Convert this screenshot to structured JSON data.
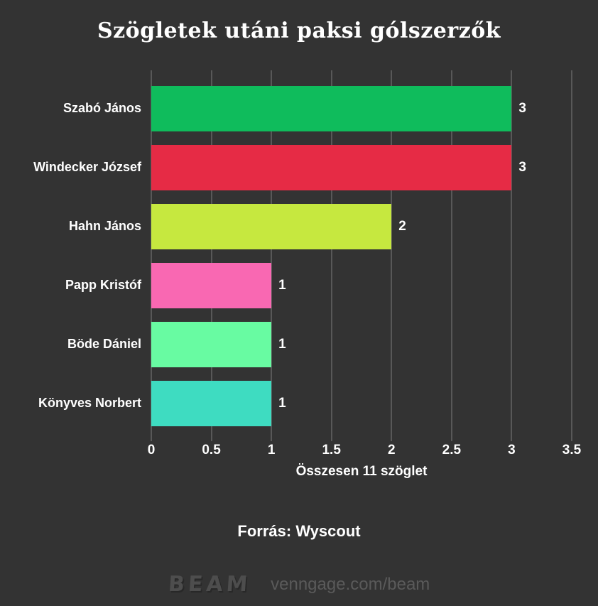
{
  "title": "Szögletek utáni paksi gólszerzők",
  "chart_data": {
    "type": "bar",
    "orientation": "horizontal",
    "categories": [
      "Szabó János",
      "Windecker József",
      "Hahn János",
      "Papp Kristóf",
      "Böde Dániel",
      "Könyves Norbert"
    ],
    "values": [
      3,
      3,
      2,
      1,
      1,
      1
    ],
    "value_labels": [
      "3",
      "3",
      "2",
      "1",
      "1",
      "1"
    ],
    "bar_colors": [
      "#0fbc5c",
      "#e62b45",
      "#c6e83f",
      "#f968b2",
      "#68fba2",
      "#3edcc1"
    ],
    "x_ticks": [
      "0",
      "0.5",
      "1",
      "1.5",
      "2",
      "2.5",
      "3",
      "3.5"
    ],
    "xlim": [
      0,
      3.5
    ],
    "xlabel": "Összesen 11 szöglet",
    "title": "Szögletek utáni paksi gólszerzők",
    "grid": true,
    "legend": false
  },
  "footer": {
    "source": "Forrás: Wyscout",
    "brand": "BEAM",
    "brand_url": "venngage.com/beam"
  },
  "colors": {
    "background": "#333333",
    "text": "#ffffff",
    "gridline": "#585858",
    "watermark": "#5a5a5a"
  }
}
